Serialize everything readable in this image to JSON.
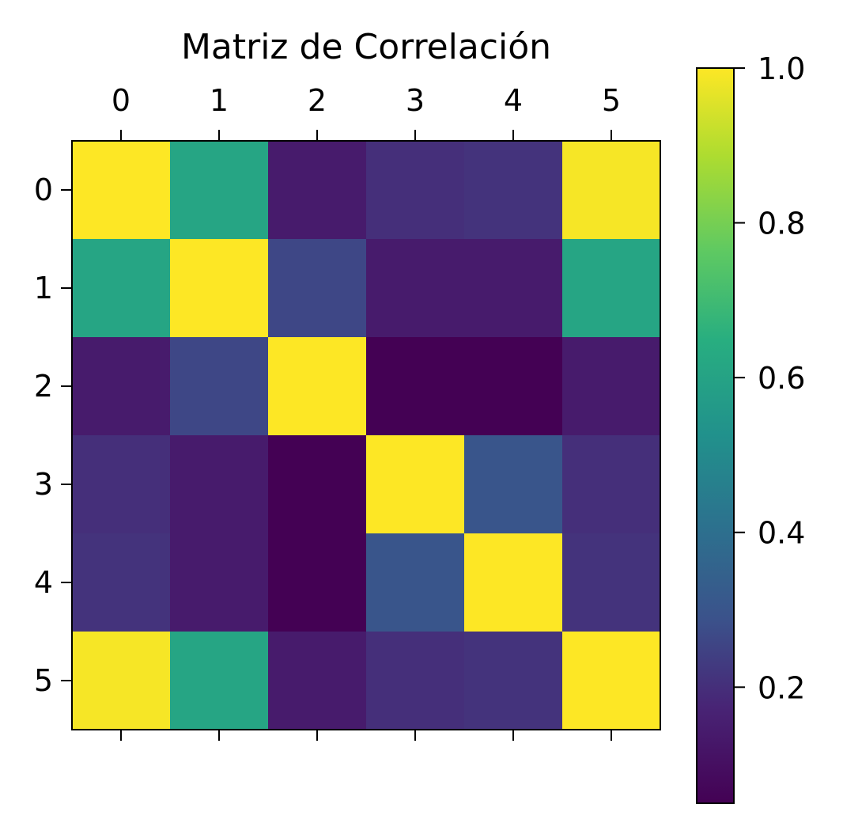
{
  "chart_data": {
    "type": "heatmap",
    "title": "Matriz de Correlación",
    "x_categories": [
      "0",
      "1",
      "2",
      "3",
      "4",
      "5"
    ],
    "y_categories": [
      "0",
      "1",
      "2",
      "3",
      "4",
      "5"
    ],
    "values": [
      [
        1.0,
        0.61,
        0.14,
        0.2,
        0.21,
        0.99
      ],
      [
        0.61,
        1.0,
        0.26,
        0.14,
        0.14,
        0.61
      ],
      [
        0.14,
        0.26,
        1.0,
        0.05,
        0.05,
        0.14
      ],
      [
        0.2,
        0.14,
        0.05,
        1.0,
        0.3,
        0.2
      ],
      [
        0.21,
        0.14,
        0.05,
        0.3,
        1.0,
        0.21
      ],
      [
        0.99,
        0.61,
        0.14,
        0.2,
        0.21,
        1.0
      ]
    ],
    "colormap": "viridis",
    "colorbar": {
      "min": 0.05,
      "max": 1.0,
      "ticks": [
        0.2,
        0.4,
        0.6,
        0.8,
        1.0
      ],
      "tick_labels": [
        "0.2",
        "0.4",
        "0.6",
        "0.8",
        "1.0"
      ]
    },
    "x_ticks_position": "top",
    "grid": false
  }
}
